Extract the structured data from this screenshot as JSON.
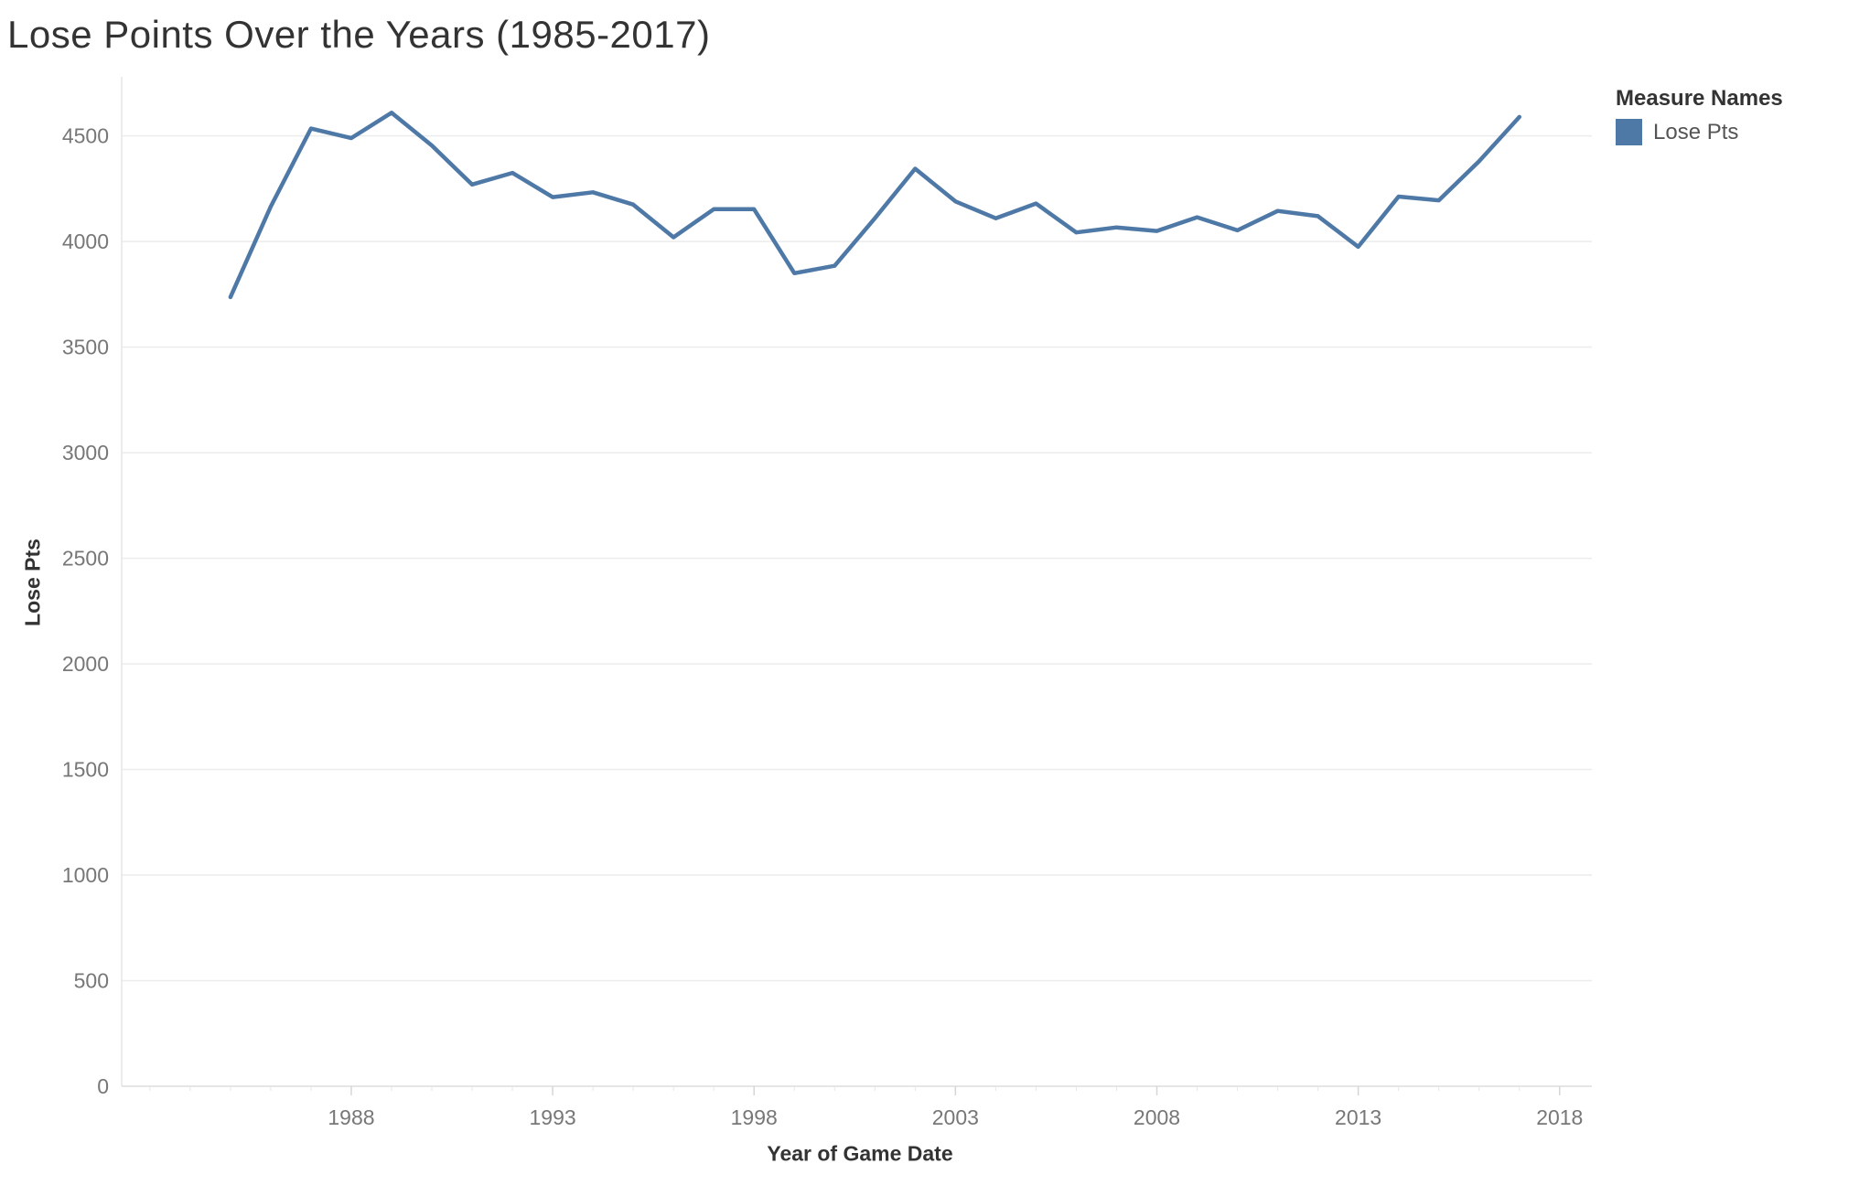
{
  "chart_data": {
    "type": "line",
    "title": "Lose Points Over the Years (1985-2017)",
    "xlabel": "Year of Game Date",
    "ylabel": "Lose Pts",
    "xlim": [
      1982.3,
      2018.8
    ],
    "ylim": [
      0,
      4780
    ],
    "x_ticks": [
      1988,
      1993,
      1998,
      2003,
      2008,
      2013,
      2018
    ],
    "y_ticks": [
      0,
      500,
      1000,
      1500,
      2000,
      2500,
      3000,
      3500,
      4000,
      4500
    ],
    "grid": true,
    "legend_title": "Measure Names",
    "legend_position": "top-right",
    "series": [
      {
        "name": "Lose Pts",
        "color": "#4e79a7",
        "x": [
          1985,
          1986,
          1987,
          1988,
          1989,
          1990,
          1991,
          1992,
          1993,
          1994,
          1995,
          1996,
          1997,
          1998,
          1999,
          2000,
          2001,
          2002,
          2003,
          2004,
          2005,
          2006,
          2007,
          2008,
          2009,
          2010,
          2011,
          2012,
          2013,
          2014,
          2015,
          2016,
          2017
        ],
        "values": [
          3737,
          4165,
          4535,
          4490,
          4610,
          4455,
          4270,
          4325,
          4210,
          4233,
          4175,
          4020,
          4153,
          4153,
          3850,
          3885,
          4110,
          4345,
          4190,
          4110,
          4180,
          4043,
          4067,
          4050,
          4115,
          4053,
          4145,
          4120,
          3975,
          4213,
          4195,
          4380,
          4590
        ]
      }
    ]
  }
}
